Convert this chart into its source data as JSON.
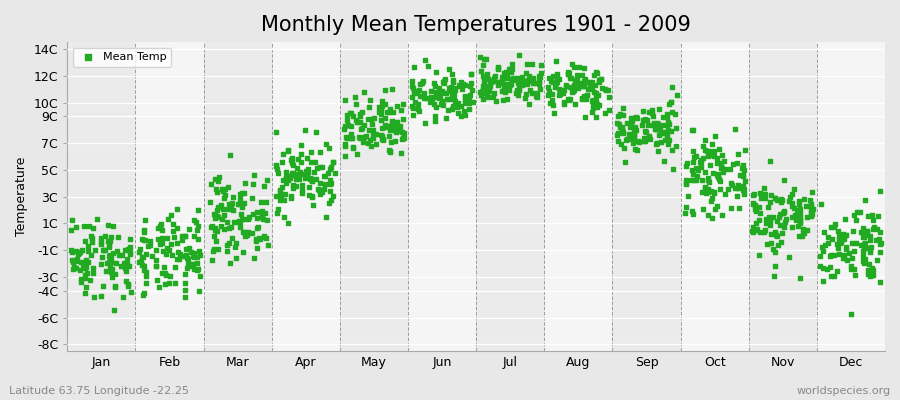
{
  "title": "Monthly Mean Temperatures 1901 - 2009",
  "ylabel": "Temperature",
  "xlabel_bottom_left": "Latitude 63.75 Longitude -22.25",
  "xlabel_bottom_right": "worldspecies.org",
  "legend_label": "Mean Temp",
  "dot_color": "#22AA22",
  "background_color": "#E8E8E8",
  "plot_bg_color": "#F2F2F2",
  "months": [
    "Jan",
    "Feb",
    "Mar",
    "Apr",
    "May",
    "Jun",
    "Jul",
    "Aug",
    "Sep",
    "Oct",
    "Nov",
    "Dec"
  ],
  "yticks": [
    -8,
    -6,
    -4,
    -3,
    -1,
    1,
    3,
    5,
    7,
    9,
    10,
    12,
    14
  ],
  "ytick_labels": [
    "-8C",
    "-6C",
    "-4C",
    "-3C",
    "-1C",
    "1C",
    "3C",
    "5C",
    "7C",
    "9C",
    "10C",
    "12C",
    "14C"
  ],
  "ylim": [
    -8.5,
    14.5
  ],
  "num_years": 109,
  "random_seed": 42,
  "marker_size": 5,
  "title_fontsize": 15,
  "axis_fontsize": 9,
  "tick_fontsize": 9,
  "monthly_means": [
    -1.5,
    -1.5,
    1.5,
    4.5,
    8.0,
    10.5,
    11.5,
    11.0,
    8.0,
    4.5,
    1.5,
    -0.5
  ],
  "monthly_stds": [
    1.5,
    1.5,
    1.5,
    1.3,
    1.2,
    0.9,
    0.8,
    0.9,
    1.0,
    1.3,
    1.5,
    1.5
  ]
}
